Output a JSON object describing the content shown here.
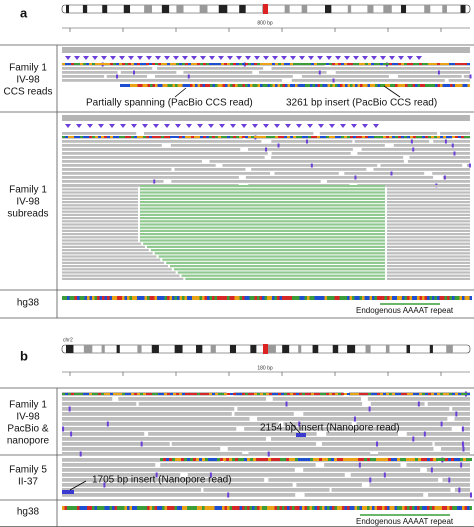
{
  "panels": [
    {
      "letter": "a",
      "scale": "800 bp",
      "tracks": [
        {
          "label": [
            "Family 1",
            "IV-98",
            "CCS reads"
          ],
          "annotations": [
            "Partially spanning (PacBio CCS read)",
            "3261 bp insert (PacBio CCS read)"
          ]
        },
        {
          "label": [
            "Family 1",
            "IV-98",
            "subreads"
          ]
        },
        {
          "label": [
            "hg38"
          ],
          "annotations": [
            "Endogenous AAAAT repeat"
          ]
        }
      ]
    },
    {
      "letter": "b",
      "chromosome": "chr2",
      "scale": "180 bp",
      "tracks": [
        {
          "label": [
            "Family 1",
            "IV-98",
            "PacBio &",
            "nanopore"
          ],
          "annotations": [
            "2154 bp insert (Nanopore read)"
          ]
        },
        {
          "label": [
            "Family 5",
            "II-37"
          ],
          "annotations": [
            "1705 bp insert (Nanopore read)"
          ]
        },
        {
          "label": [
            "hg38"
          ],
          "annotations": [
            "Endogenous AAAAT repeat"
          ]
        }
      ]
    }
  ]
}
